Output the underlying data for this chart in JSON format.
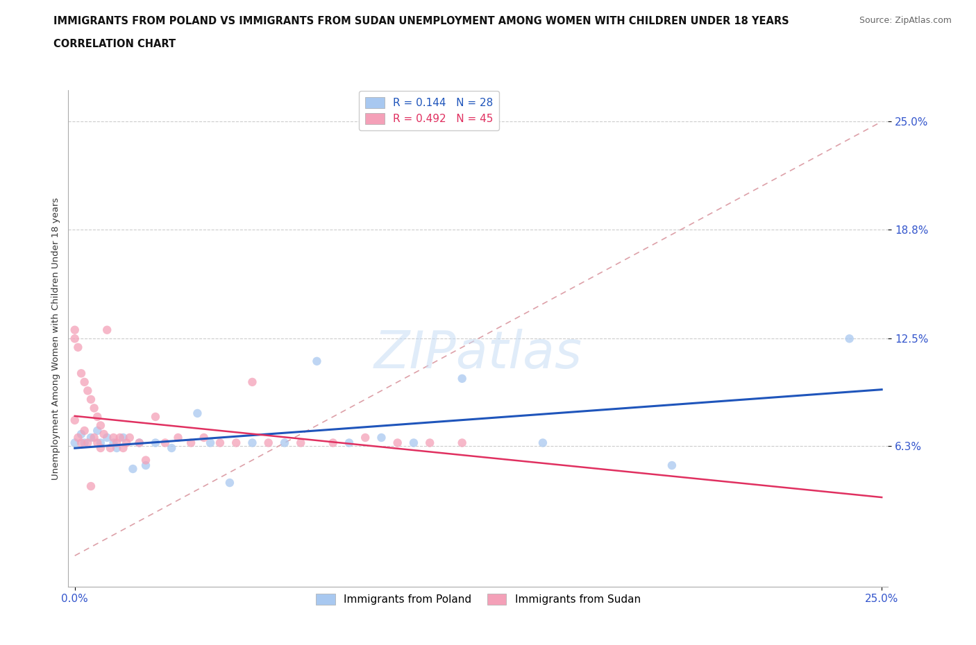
{
  "title_line1": "IMMIGRANTS FROM POLAND VS IMMIGRANTS FROM SUDAN UNEMPLOYMENT AMONG WOMEN WITH CHILDREN UNDER 18 YEARS",
  "title_line2": "CORRELATION CHART",
  "source": "Source: ZipAtlas.com",
  "ylabel": "Unemployment Among Women with Children Under 18 years",
  "ytick_labels": [
    "25.0%",
    "18.8%",
    "12.5%",
    "6.3%"
  ],
  "ytick_values": [
    0.25,
    0.188,
    0.125,
    0.063
  ],
  "xlim": [
    0.0,
    0.25
  ],
  "ylim": [
    0.0,
    0.265
  ],
  "legend_label1": "Immigrants from Poland",
  "legend_label2": "Immigrants from Sudan",
  "R1": "0.144",
  "N1": "28",
  "R2": "0.492",
  "N2": "45",
  "color_poland": "#A8C8F0",
  "color_sudan": "#F4A0B8",
  "color_poland_line": "#1F55BB",
  "color_sudan_line": "#E03060",
  "color_dashed": "#DDA0A8",
  "watermark_color": "#C8DDF5",
  "poland_x": [
    0.0,
    0.002,
    0.003,
    0.005,
    0.007,
    0.008,
    0.01,
    0.012,
    0.013,
    0.015,
    0.018,
    0.02,
    0.022,
    0.025,
    0.03,
    0.038,
    0.042,
    0.048,
    0.055,
    0.065,
    0.075,
    0.085,
    0.095,
    0.105,
    0.12,
    0.145,
    0.185,
    0.24
  ],
  "poland_y": [
    0.065,
    0.07,
    0.065,
    0.068,
    0.072,
    0.065,
    0.068,
    0.065,
    0.062,
    0.068,
    0.05,
    0.065,
    0.052,
    0.065,
    0.062,
    0.082,
    0.065,
    0.042,
    0.065,
    0.065,
    0.112,
    0.065,
    0.068,
    0.065,
    0.102,
    0.065,
    0.052,
    0.125
  ],
  "sudan_x": [
    0.0,
    0.0,
    0.0,
    0.001,
    0.001,
    0.002,
    0.002,
    0.003,
    0.003,
    0.004,
    0.004,
    0.005,
    0.005,
    0.006,
    0.006,
    0.007,
    0.007,
    0.008,
    0.008,
    0.009,
    0.01,
    0.011,
    0.012,
    0.013,
    0.014,
    0.015,
    0.016,
    0.017,
    0.02,
    0.022,
    0.025,
    0.028,
    0.032,
    0.036,
    0.04,
    0.045,
    0.05,
    0.055,
    0.06,
    0.07,
    0.08,
    0.09,
    0.1,
    0.11,
    0.12
  ],
  "sudan_y": [
    0.13,
    0.125,
    0.078,
    0.12,
    0.068,
    0.105,
    0.065,
    0.1,
    0.072,
    0.095,
    0.065,
    0.09,
    0.04,
    0.085,
    0.068,
    0.08,
    0.065,
    0.075,
    0.062,
    0.07,
    0.13,
    0.062,
    0.068,
    0.065,
    0.068,
    0.062,
    0.065,
    0.068,
    0.065,
    0.055,
    0.08,
    0.065,
    0.068,
    0.065,
    0.068,
    0.065,
    0.065,
    0.1,
    0.065,
    0.065,
    0.065,
    0.068,
    0.065,
    0.065,
    0.065
  ]
}
